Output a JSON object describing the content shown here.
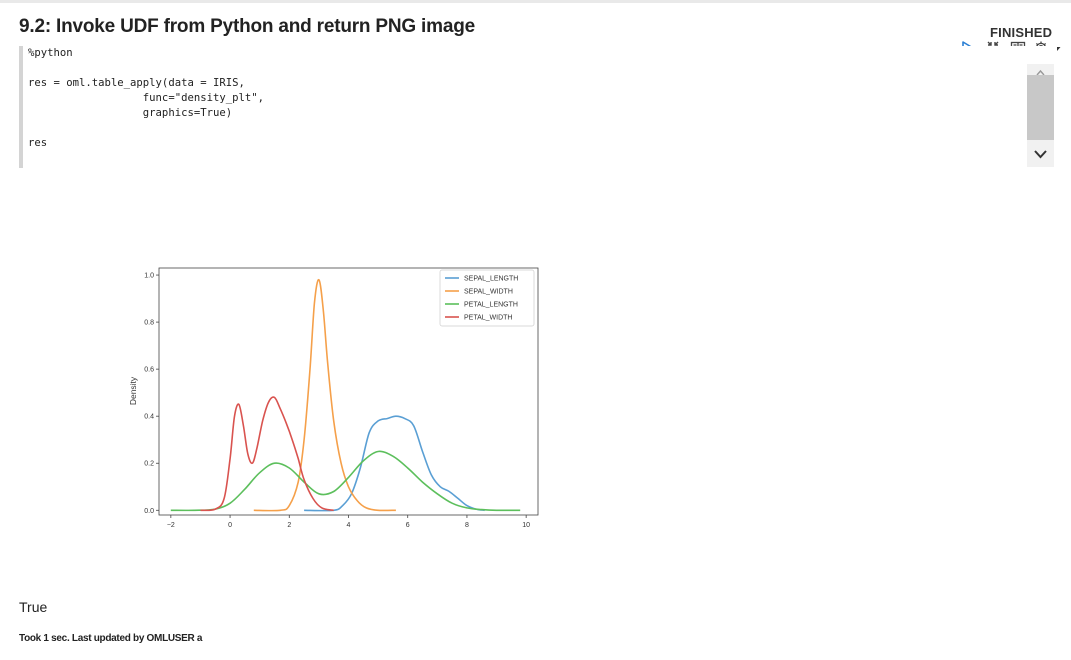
{
  "paragraph": {
    "title": "9.2: Invoke UDF from Python and return PNG image",
    "status": "FINISHED"
  },
  "toolbar": {
    "icons": [
      "run-icon",
      "collapse-icon",
      "book-icon",
      "gear-icon",
      "caret-down-icon"
    ]
  },
  "editor": {
    "lines": [
      "%python",
      "",
      "res = oml.table_apply(data = IRIS,",
      "                  func=\"density_plt\",",
      "                  graphics=True)",
      "",
      "res"
    ]
  },
  "output": {
    "result": "True",
    "footer": "Took 1 sec. Last updated by OMLUSER a"
  },
  "colors": {
    "SEPAL_LENGTH": "#5a9fd4",
    "SEPAL_WIDTH": "#f5a04a",
    "PETAL_LENGTH": "#5cbf5c",
    "PETAL_WIDTH": "#d9534f"
  },
  "chart_data": {
    "type": "line",
    "title": "",
    "xlabel": "",
    "ylabel": "Density",
    "xlim": [
      -2.4,
      10.4
    ],
    "ylim": [
      -0.02,
      1.03
    ],
    "xticks": [
      -2,
      0,
      2,
      4,
      6,
      8,
      10
    ],
    "yticks": [
      0.0,
      0.2,
      0.4,
      0.6,
      0.8,
      1.0
    ],
    "ytick_labels": [
      "0.0",
      "0.2",
      "0.4",
      "0.6",
      "0.8",
      "1.0"
    ],
    "legend": "top-right",
    "grid": false,
    "series": [
      {
        "name": "SEPAL_LENGTH",
        "x": [
          2.5,
          3.5,
          3.8,
          4.1,
          4.4,
          4.7,
          5.0,
          5.3,
          5.6,
          5.9,
          6.2,
          6.5,
          6.8,
          7.1,
          7.4,
          7.7,
          8.0,
          8.3,
          8.6
        ],
        "y": [
          0.0,
          0.0,
          0.02,
          0.07,
          0.18,
          0.33,
          0.38,
          0.39,
          0.4,
          0.39,
          0.36,
          0.25,
          0.15,
          0.1,
          0.08,
          0.05,
          0.02,
          0.005,
          0.0
        ]
      },
      {
        "name": "SEPAL_WIDTH",
        "x": [
          0.8,
          1.7,
          2.0,
          2.3,
          2.5,
          2.7,
          2.85,
          3.0,
          3.15,
          3.3,
          3.5,
          3.75,
          4.0,
          4.3,
          4.6,
          5.0,
          5.6
        ],
        "y": [
          0.0,
          0.0,
          0.02,
          0.12,
          0.3,
          0.6,
          0.88,
          0.98,
          0.85,
          0.62,
          0.38,
          0.2,
          0.1,
          0.04,
          0.01,
          0.0,
          0.0
        ]
      },
      {
        "name": "PETAL_LENGTH",
        "x": [
          -2,
          -1.2,
          -0.5,
          0,
          0.5,
          1.0,
          1.5,
          2.0,
          2.5,
          3.0,
          3.5,
          4.0,
          4.5,
          5.0,
          5.5,
          6.0,
          6.5,
          7.0,
          7.5,
          8.0,
          8.5,
          9.0,
          9.8
        ],
        "y": [
          0.0,
          0.0,
          0.005,
          0.03,
          0.09,
          0.16,
          0.2,
          0.18,
          0.12,
          0.07,
          0.08,
          0.14,
          0.21,
          0.25,
          0.23,
          0.18,
          0.12,
          0.07,
          0.03,
          0.01,
          0.003,
          0.0,
          0.0
        ]
      },
      {
        "name": "PETAL_WIDTH",
        "x": [
          -1.0,
          -0.5,
          -0.2,
          0.0,
          0.15,
          0.3,
          0.45,
          0.6,
          0.75,
          0.9,
          1.1,
          1.3,
          1.5,
          1.7,
          1.9,
          2.1,
          2.3,
          2.5,
          2.8,
          3.1,
          3.5
        ],
        "y": [
          0.0,
          0.005,
          0.05,
          0.22,
          0.4,
          0.45,
          0.36,
          0.24,
          0.2,
          0.26,
          0.38,
          0.46,
          0.48,
          0.43,
          0.37,
          0.3,
          0.22,
          0.13,
          0.05,
          0.01,
          0.0
        ]
      }
    ]
  }
}
